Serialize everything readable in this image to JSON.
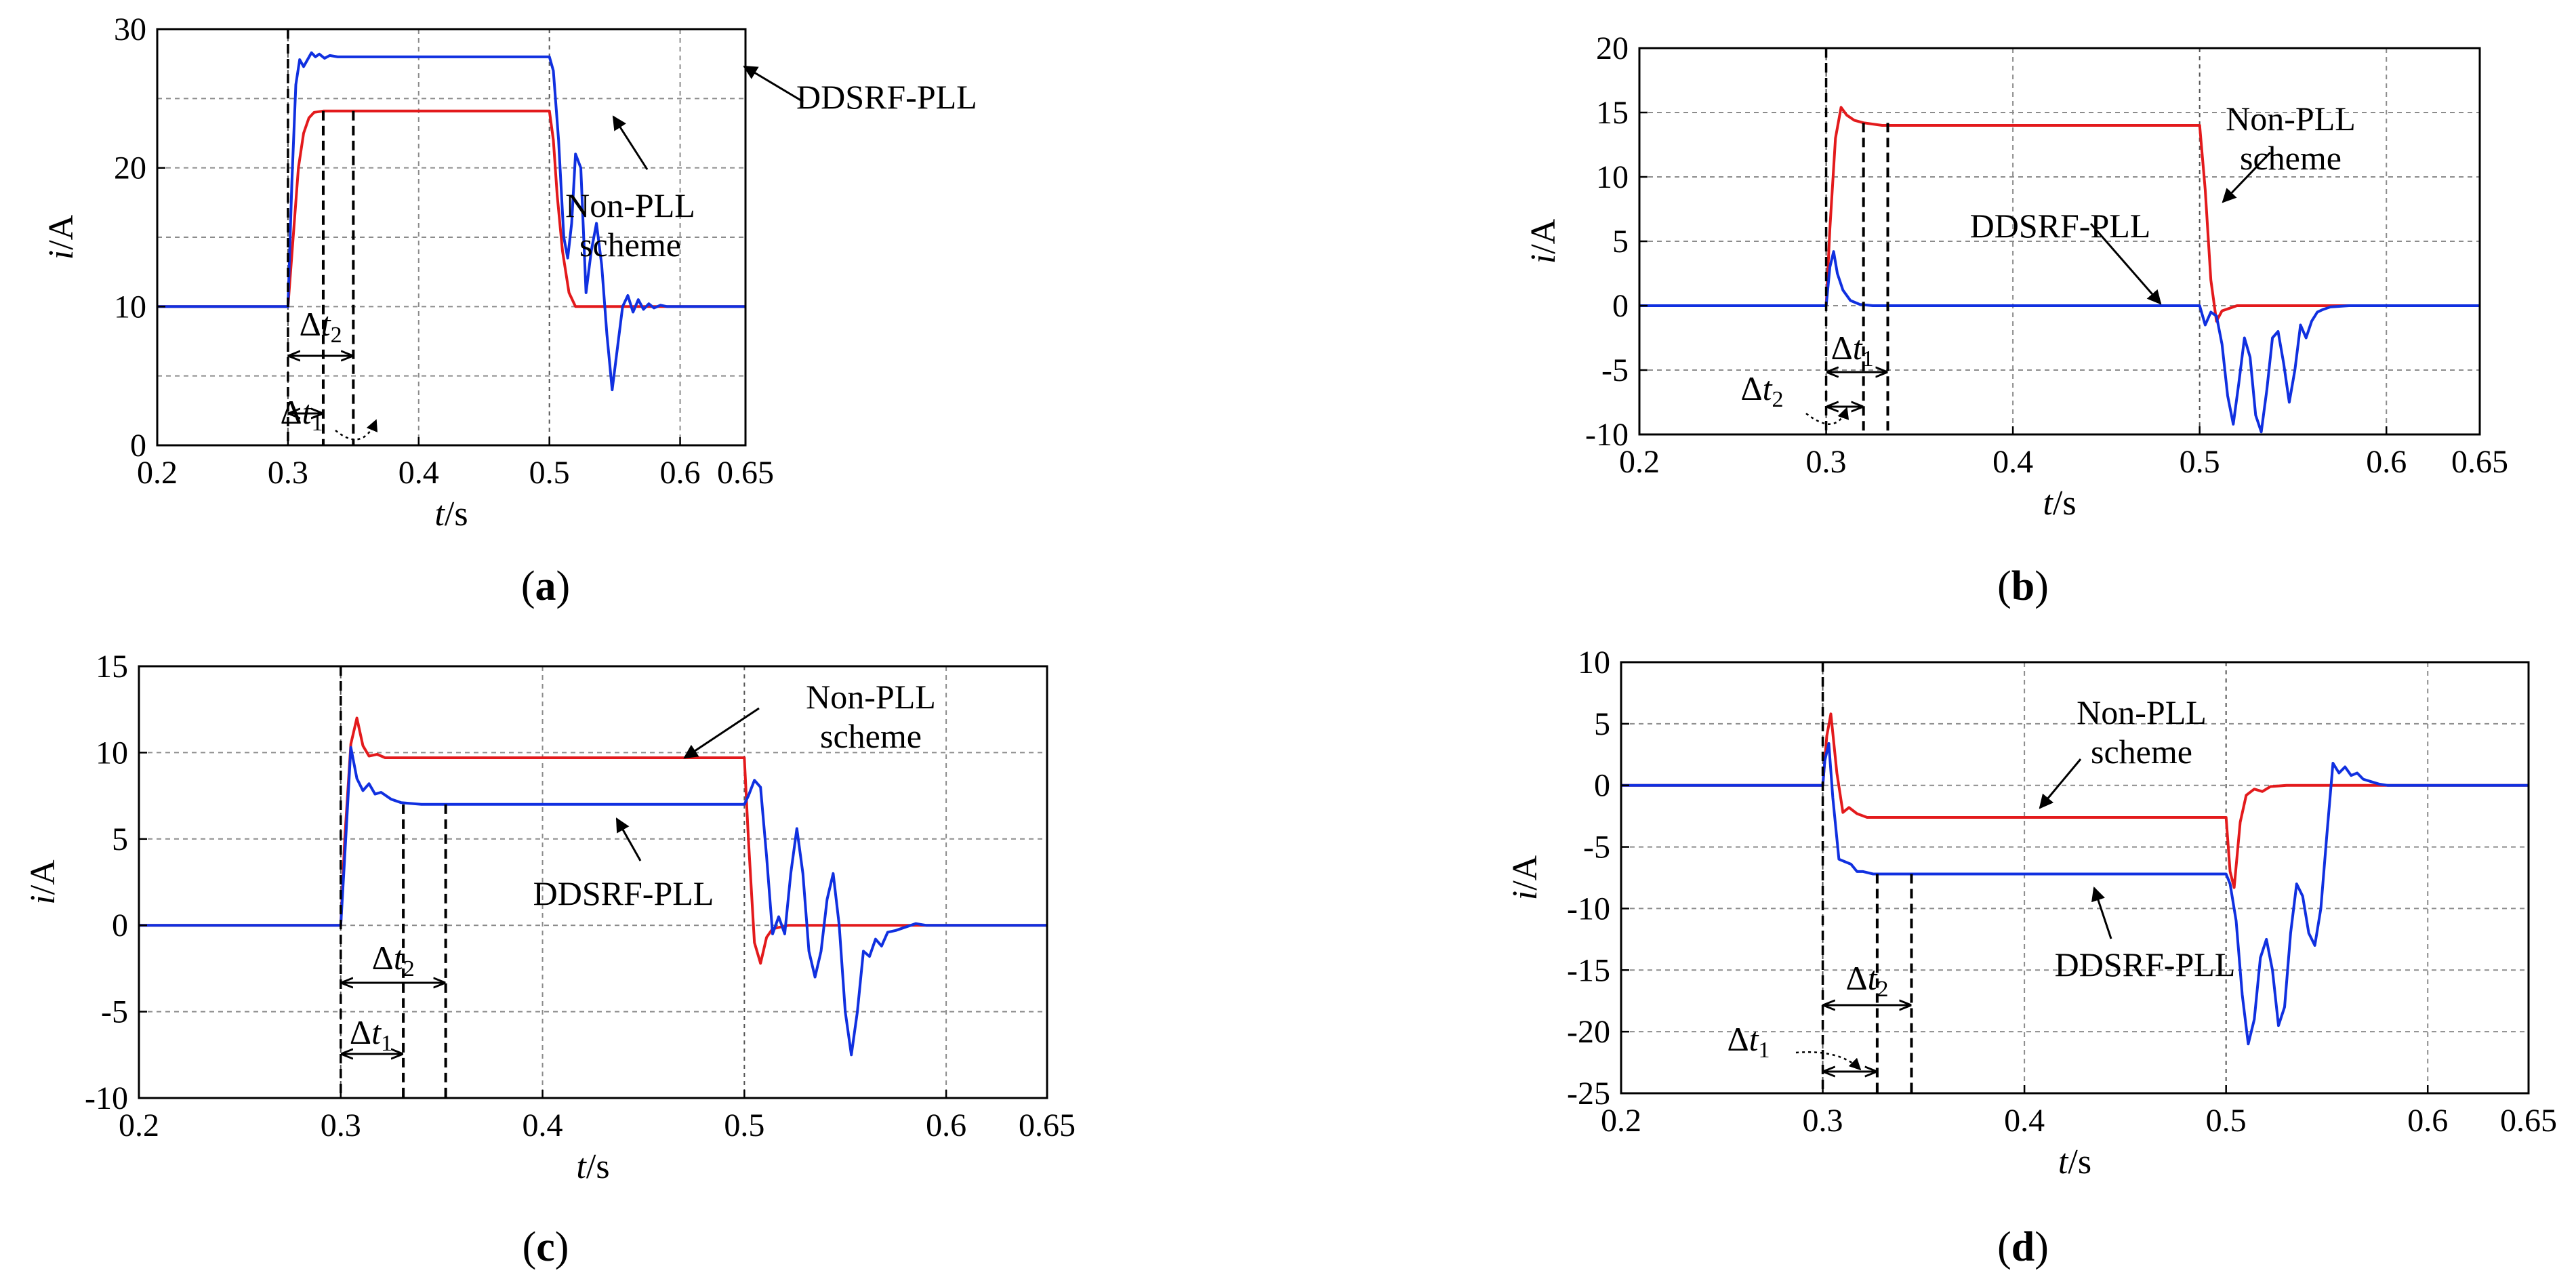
{
  "colors": {
    "non_pll": "#e31a1c",
    "ddsrf": "#1030e0",
    "grid": "#8c8c8c",
    "axis": "#000000"
  },
  "chart_data": [
    {
      "type": "line",
      "caption": "a",
      "xlabel_var": "t",
      "xlabel_unit": "/s",
      "ylabel_var": "i",
      "ylabel_unit": "/A",
      "xlim": [
        0.2,
        0.65
      ],
      "ylim": [
        0,
        30
      ],
      "xticks": [
        0.2,
        0.3,
        0.4,
        0.5,
        0.6,
        0.65
      ],
      "xtick_labels": [
        "0.2",
        "0.3",
        "0.4",
        "0.5",
        "0.6",
        "0.65"
      ],
      "yticks": [
        0,
        10,
        20,
        30
      ],
      "ytick_labels": [
        "0",
        "10",
        "20",
        "30"
      ],
      "ygrid": [
        5,
        10,
        15,
        20,
        25
      ],
      "dashed_markers": [
        0.3,
        0.327,
        0.35
      ],
      "series": [
        {
          "name": "Non-PLL scheme",
          "color": "#e31a1c",
          "x": [
            0.2,
            0.3,
            0.304,
            0.308,
            0.312,
            0.316,
            0.32,
            0.327,
            0.5,
            0.503,
            0.506,
            0.51,
            0.515,
            0.52,
            0.65
          ],
          "y": [
            10,
            10,
            15,
            20,
            22.5,
            23.6,
            24,
            24.1,
            24.1,
            22,
            18,
            14,
            11,
            10,
            10
          ]
        },
        {
          "name": "DDSRF-PLL",
          "color": "#1030e0",
          "x": [
            0.2,
            0.3,
            0.303,
            0.306,
            0.309,
            0.312,
            0.315,
            0.318,
            0.321,
            0.324,
            0.328,
            0.332,
            0.338,
            0.345,
            0.5,
            0.503,
            0.507,
            0.511,
            0.514,
            0.517,
            0.52,
            0.524,
            0.528,
            0.532,
            0.536,
            0.54,
            0.544,
            0.548,
            0.552,
            0.556,
            0.56,
            0.564,
            0.568,
            0.572,
            0.576,
            0.58,
            0.585,
            0.59,
            0.6,
            0.65
          ],
          "y": [
            10,
            10,
            19,
            26,
            27.8,
            27.3,
            27.8,
            28.3,
            28,
            28.2,
            27.9,
            28.1,
            28,
            28,
            28,
            27,
            22,
            15,
            13.5,
            16,
            21,
            20,
            11,
            14,
            16,
            13,
            8,
            4,
            7,
            10,
            10.8,
            9.6,
            10.5,
            9.8,
            10.2,
            9.9,
            10.1,
            10,
            10,
            10
          ]
        }
      ],
      "labels": [
        {
          "text": "DDSRF-PLL",
          "lines": [
            "DDSRF-PLL"
          ]
        },
        {
          "text": "Non-PLL scheme",
          "lines": [
            "Non-PLL",
            "scheme"
          ]
        }
      ],
      "interval_labels": [
        {
          "sym": "Δ",
          "var": "t",
          "sub": "2"
        },
        {
          "sym": "Δ",
          "var": "t",
          "sub": "1"
        }
      ]
    },
    {
      "type": "line",
      "caption": "b",
      "xlabel_var": "t",
      "xlabel_unit": "/s",
      "ylabel_var": "i",
      "ylabel_unit": "/A",
      "xlim": [
        0.2,
        0.65
      ],
      "ylim": [
        -10,
        20
      ],
      "xticks": [
        0.2,
        0.3,
        0.4,
        0.5,
        0.6,
        0.65
      ],
      "xtick_labels": [
        "0.2",
        "0.3",
        "0.4",
        "0.5",
        "0.6",
        "0.65"
      ],
      "yticks": [
        -10,
        -5,
        0,
        5,
        10,
        15,
        20
      ],
      "ytick_labels": [
        "-10",
        "-5",
        "0",
        "5",
        "10",
        "15",
        "20"
      ],
      "ygrid": [
        -5,
        0,
        5,
        10,
        15
      ],
      "dashed_markers": [
        0.3,
        0.32,
        0.333
      ],
      "series": [
        {
          "name": "Non-PLL scheme",
          "color": "#e31a1c",
          "x": [
            0.2,
            0.3,
            0.302,
            0.305,
            0.308,
            0.311,
            0.315,
            0.32,
            0.33,
            0.5,
            0.503,
            0.506,
            0.509,
            0.512,
            0.516,
            0.52,
            0.53,
            0.65
          ],
          "y": [
            0,
            0,
            6,
            13,
            15.4,
            14.8,
            14.4,
            14.2,
            14,
            14,
            9,
            2,
            -1.2,
            -0.4,
            -0.2,
            0,
            0,
            0
          ]
        },
        {
          "name": "DDSRF-PLL",
          "color": "#1030e0",
          "x": [
            0.2,
            0.3,
            0.302,
            0.304,
            0.306,
            0.309,
            0.313,
            0.318,
            0.325,
            0.5,
            0.503,
            0.506,
            0.509,
            0.512,
            0.515,
            0.518,
            0.521,
            0.524,
            0.527,
            0.53,
            0.533,
            0.536,
            0.539,
            0.542,
            0.545,
            0.548,
            0.551,
            0.554,
            0.557,
            0.56,
            0.563,
            0.566,
            0.57,
            0.58,
            0.6,
            0.65
          ],
          "y": [
            0,
            0,
            3,
            4.2,
            2.5,
            1.2,
            0.4,
            0.1,
            0,
            0,
            -1.5,
            -0.5,
            -0.8,
            -3,
            -7,
            -9.2,
            -6,
            -2.5,
            -4,
            -8.5,
            -9.8,
            -6.5,
            -2.5,
            -2,
            -4.5,
            -7.5,
            -5,
            -1.5,
            -2.5,
            -1.2,
            -0.5,
            -0.3,
            -0.1,
            0,
            0,
            0
          ]
        }
      ],
      "labels": [
        {
          "text": "Non-PLL scheme",
          "lines": [
            "Non-PLL",
            "scheme"
          ]
        },
        {
          "text": "DDSRF-PLL",
          "lines": [
            "DDSRF-PLL"
          ]
        }
      ],
      "interval_labels": [
        {
          "sym": "Δ",
          "var": "t",
          "sub": "1"
        },
        {
          "sym": "Δ",
          "var": "t",
          "sub": "2"
        }
      ]
    },
    {
      "type": "line",
      "caption": "c",
      "xlabel_var": "t",
      "xlabel_unit": "/s",
      "ylabel_var": "i",
      "ylabel_unit": "/A",
      "xlim": [
        0.2,
        0.65
      ],
      "ylim": [
        -10,
        15
      ],
      "xticks": [
        0.2,
        0.3,
        0.4,
        0.5,
        0.6,
        0.65
      ],
      "xtick_labels": [
        "0.2",
        "0.3",
        "0.4",
        "0.5",
        "0.6",
        "0.65"
      ],
      "yticks": [
        -10,
        -5,
        0,
        5,
        10,
        15
      ],
      "ytick_labels": [
        "-10",
        "-5",
        "0",
        "5",
        "10",
        "15"
      ],
      "ygrid": [
        -5,
        0,
        5,
        10
      ],
      "dashed_markers": [
        0.3,
        0.331,
        0.352
      ],
      "series": [
        {
          "name": "Non-PLL scheme",
          "color": "#e31a1c",
          "x": [
            0.2,
            0.3,
            0.302,
            0.305,
            0.308,
            0.311,
            0.314,
            0.318,
            0.322,
            0.33,
            0.5,
            0.502,
            0.505,
            0.508,
            0.511,
            0.514,
            0.518,
            0.522,
            0.53,
            0.65
          ],
          "y": [
            0,
            0,
            5,
            10.5,
            12,
            10.4,
            9.8,
            9.9,
            9.7,
            9.7,
            9.7,
            5,
            -1,
            -2.2,
            -0.7,
            -0.2,
            -0.1,
            0,
            0,
            0
          ]
        },
        {
          "name": "DDSRF-PLL",
          "color": "#1030e0",
          "x": [
            0.2,
            0.3,
            0.302,
            0.305,
            0.308,
            0.311,
            0.314,
            0.317,
            0.32,
            0.325,
            0.33,
            0.34,
            0.35,
            0.5,
            0.502,
            0.505,
            0.508,
            0.511,
            0.514,
            0.517,
            0.52,
            0.523,
            0.526,
            0.529,
            0.532,
            0.535,
            0.538,
            0.541,
            0.544,
            0.547,
            0.55,
            0.553,
            0.556,
            0.559,
            0.562,
            0.565,
            0.568,
            0.571,
            0.575,
            0.58,
            0.585,
            0.59,
            0.6,
            0.65
          ],
          "y": [
            0,
            0,
            4,
            10.3,
            8.5,
            7.8,
            8.2,
            7.6,
            7.7,
            7.3,
            7.1,
            7,
            7,
            7,
            7.5,
            8.4,
            8,
            4,
            -0.5,
            0.5,
            -0.5,
            3,
            5.6,
            3,
            -1.5,
            -3,
            -1.5,
            1.5,
            3,
            0,
            -5,
            -7.5,
            -5,
            -1.5,
            -1.8,
            -0.8,
            -1.2,
            -0.4,
            -0.3,
            -0.1,
            0.1,
            0,
            0,
            0
          ]
        }
      ],
      "labels": [
        {
          "text": "Non-PLL scheme",
          "lines": [
            "Non-PLL",
            "scheme"
          ]
        },
        {
          "text": "DDSRF-PLL",
          "lines": [
            "DDSRF-PLL"
          ]
        }
      ],
      "interval_labels": [
        {
          "sym": "Δ",
          "var": "t",
          "sub": "2"
        },
        {
          "sym": "Δ",
          "var": "t",
          "sub": "1"
        }
      ]
    },
    {
      "type": "line",
      "caption": "d",
      "xlabel_var": "t",
      "xlabel_unit": "/s",
      "ylabel_var": "i",
      "ylabel_unit": "/A",
      "xlim": [
        0.2,
        0.65
      ],
      "ylim": [
        -25,
        10
      ],
      "xticks": [
        0.2,
        0.3,
        0.4,
        0.5,
        0.6,
        0.65
      ],
      "xtick_labels": [
        "0.2",
        "0.3",
        "0.4",
        "0.5",
        "0.6",
        "0.65"
      ],
      "yticks": [
        -25,
        -20,
        -15,
        -10,
        -5,
        0,
        5,
        10
      ],
      "ytick_labels": [
        "-25",
        "-20",
        "-15",
        "-10",
        "-5",
        "0",
        "5",
        "10"
      ],
      "ygrid": [
        -20,
        -15,
        -10,
        -5,
        0,
        5
      ],
      "dashed_markers": [
        0.3,
        0.327,
        0.344
      ],
      "series": [
        {
          "name": "Non-PLL scheme",
          "color": "#e31a1c",
          "x": [
            0.2,
            0.3,
            0.302,
            0.304,
            0.307,
            0.31,
            0.313,
            0.317,
            0.322,
            0.33,
            0.5,
            0.502,
            0.504,
            0.507,
            0.51,
            0.514,
            0.518,
            0.522,
            0.53,
            0.65
          ],
          "y": [
            0,
            0,
            4,
            5.8,
            1,
            -2.2,
            -1.8,
            -2.3,
            -2.6,
            -2.6,
            -2.6,
            -7,
            -8.3,
            -3,
            -0.8,
            -0.3,
            -0.5,
            -0.1,
            0,
            0
          ]
        },
        {
          "name": "DDSRF-PLL",
          "color": "#1030e0",
          "x": [
            0.2,
            0.3,
            0.301,
            0.303,
            0.305,
            0.308,
            0.311,
            0.314,
            0.317,
            0.32,
            0.325,
            0.33,
            0.34,
            0.5,
            0.502,
            0.505,
            0.508,
            0.511,
            0.514,
            0.517,
            0.52,
            0.523,
            0.526,
            0.529,
            0.532,
            0.535,
            0.538,
            0.541,
            0.544,
            0.547,
            0.55,
            0.553,
            0.556,
            0.559,
            0.562,
            0.565,
            0.568,
            0.572,
            0.576,
            0.58,
            0.585,
            0.59,
            0.6,
            0.65
          ],
          "y": [
            0,
            0,
            2,
            3.4,
            -1,
            -6,
            -6.2,
            -6.4,
            -7,
            -7,
            -7.2,
            -7.2,
            -7.2,
            -7.2,
            -8,
            -11,
            -17,
            -21,
            -19,
            -14,
            -12.5,
            -15,
            -19.5,
            -18,
            -12,
            -8,
            -9,
            -12,
            -13,
            -10,
            -4,
            1.8,
            1,
            1.5,
            0.8,
            1,
            0.5,
            0.3,
            0.1,
            0,
            0,
            0,
            0,
            0
          ]
        }
      ],
      "labels": [
        {
          "text": "Non-PLL scheme",
          "lines": [
            "Non-PLL",
            "scheme"
          ]
        },
        {
          "text": "DDSRF-PLL",
          "lines": [
            "DDSRF-PLL"
          ]
        }
      ],
      "interval_labels": [
        {
          "sym": "Δ",
          "var": "t",
          "sub": "2"
        },
        {
          "sym": "Δ",
          "var": "t",
          "sub": "1"
        }
      ]
    }
  ]
}
